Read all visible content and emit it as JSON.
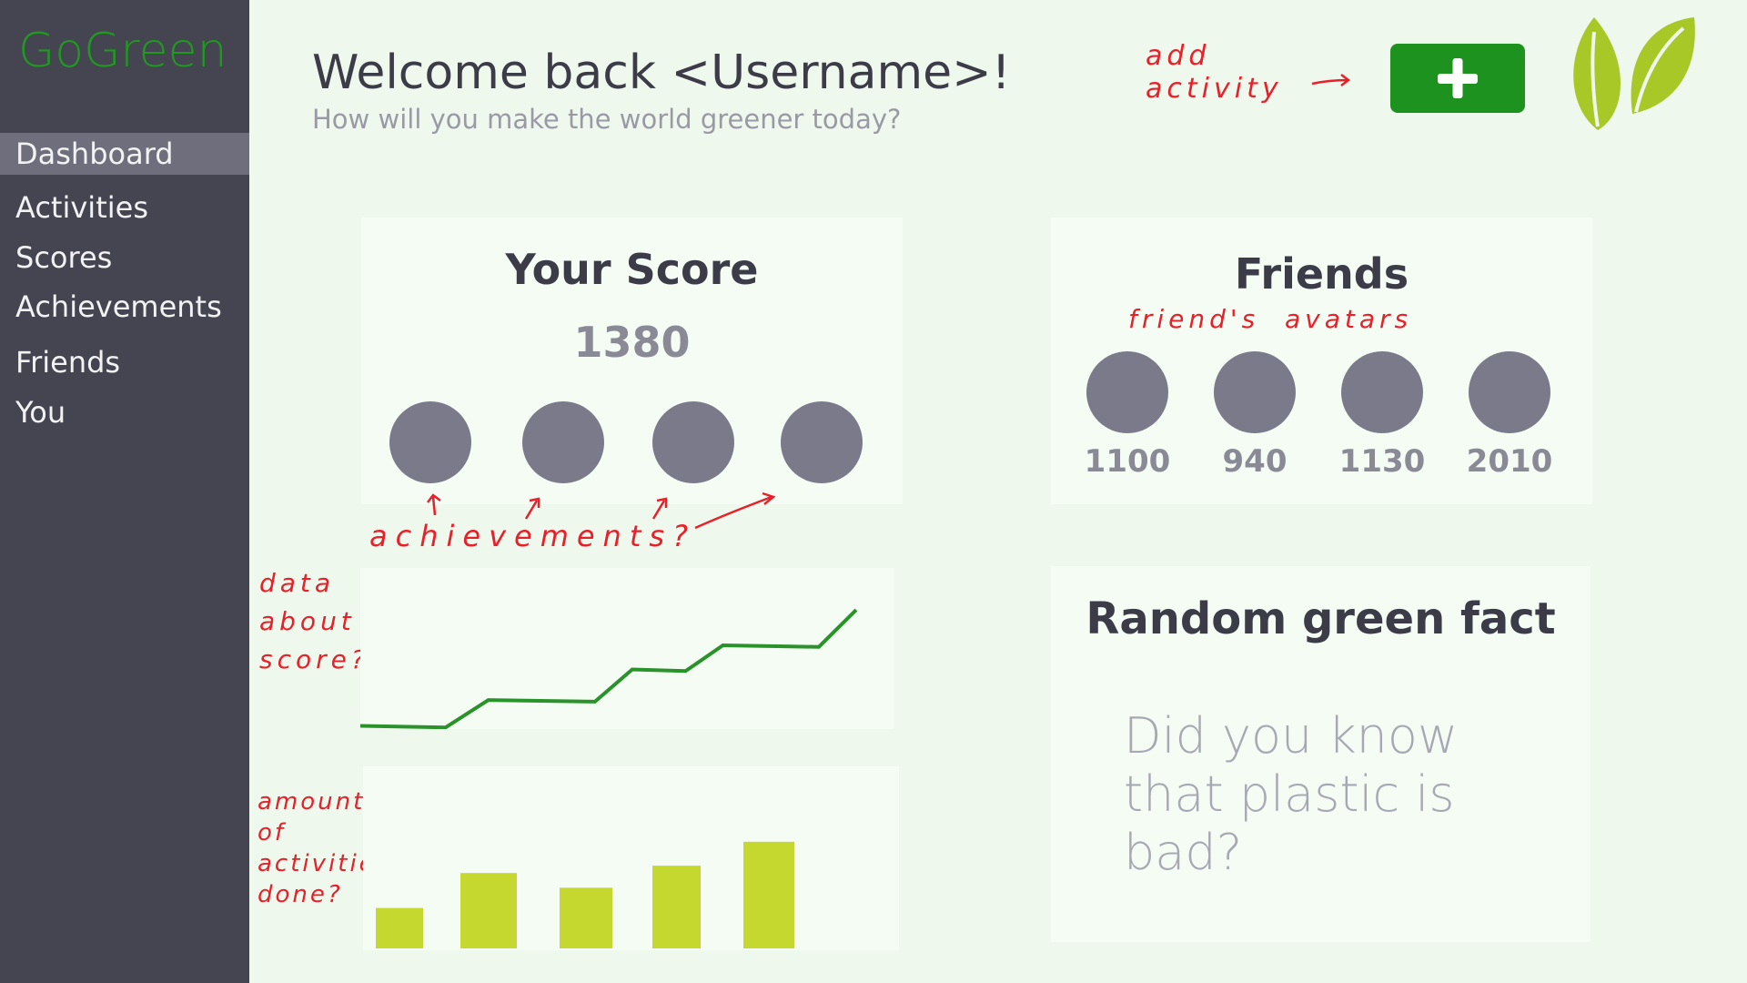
{
  "app": {
    "logo": "GoGreen"
  },
  "sidebar": {
    "items": [
      {
        "label": "Dashboard",
        "active": true
      },
      {
        "label": "Activities"
      },
      {
        "label": "Scores"
      },
      {
        "label": "Achievements"
      },
      {
        "label": "Friends"
      },
      {
        "label": "You"
      }
    ]
  },
  "header": {
    "title": "Welcome back <Username>!",
    "subtitle": "How will you make the world greener today?",
    "add_button_icon": "plus-icon",
    "logo_icon": "leaf-icon"
  },
  "annotations": {
    "add": "add\nactivity",
    "achievements": "achievements?",
    "score_data": "data\nabout\nscore?",
    "friends": "friend's  avatars",
    "activities": "amount\nof\nactivities\ndone?"
  },
  "score_card": {
    "title": "Your Score",
    "score": "1380",
    "achievement_count": 4
  },
  "friends_card": {
    "title": "Friends",
    "friends": [
      {
        "score": "1100"
      },
      {
        "score": "940"
      },
      {
        "score": "1130"
      },
      {
        "score": "2010"
      }
    ]
  },
  "fact_card": {
    "title": "Random green fact",
    "text": "Did you know that plastic is bad?"
  },
  "colors": {
    "accent": "#1e921e",
    "line": "#2a922a",
    "bars": "#c4d830",
    "sidebar": "#454552",
    "annotation": "#e8202a"
  },
  "chart_data": [
    {
      "type": "line",
      "x": [
        0,
        16,
        24,
        44,
        51,
        61,
        68,
        86,
        93
      ],
      "y": [
        2,
        1,
        18,
        17,
        37,
        36,
        52,
        51,
        74
      ],
      "ylim": [
        0,
        100
      ],
      "xlim": [
        0,
        100
      ],
      "grid": false
    },
    {
      "type": "bar",
      "values": [
        22,
        41,
        33,
        45,
        58
      ],
      "ylim": [
        0,
        100
      ],
      "grid": false
    }
  ]
}
